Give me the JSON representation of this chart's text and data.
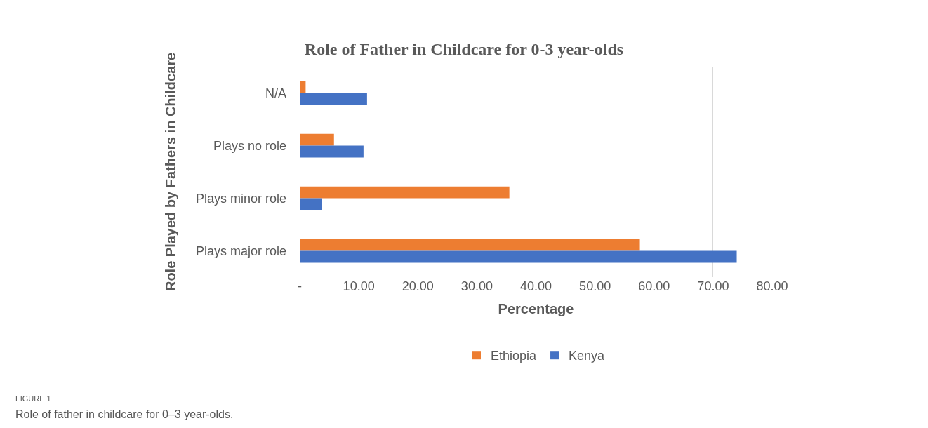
{
  "chart_data": {
    "type": "bar",
    "orientation": "horizontal",
    "title": "Role of Father in Childcare for 0-3 year-olds",
    "xlabel": "Percentage",
    "ylabel": "Role Played by Fathers in Childcare",
    "categories": [
      "N/A",
      "Plays no role",
      "Plays minor role",
      "Plays major role"
    ],
    "series": [
      {
        "name": "Ethiopia",
        "color": "#ed7d31",
        "values": [
          1.0,
          5.8,
          35.5,
          57.6
        ]
      },
      {
        "name": "Kenya",
        "color": "#4472c4",
        "values": [
          11.4,
          10.8,
          3.7,
          74.0
        ]
      }
    ],
    "xlim": [
      0,
      80
    ],
    "xticks": [
      {
        "value": 0,
        "label": "-"
      },
      {
        "value": 10,
        "label": "10.00"
      },
      {
        "value": 20,
        "label": "20.00"
      },
      {
        "value": 30,
        "label": "30.00"
      },
      {
        "value": 40,
        "label": "40.00"
      },
      {
        "value": 50,
        "label": "50.00"
      },
      {
        "value": 60,
        "label": "60.00"
      },
      {
        "value": 70,
        "label": "70.00"
      },
      {
        "value": 80,
        "label": "80.00"
      }
    ],
    "grid": "x",
    "legend": "bottom",
    "annotations": [
      "FIGURE 1",
      "Role of father in childcare for 0–3 year-olds."
    ]
  }
}
